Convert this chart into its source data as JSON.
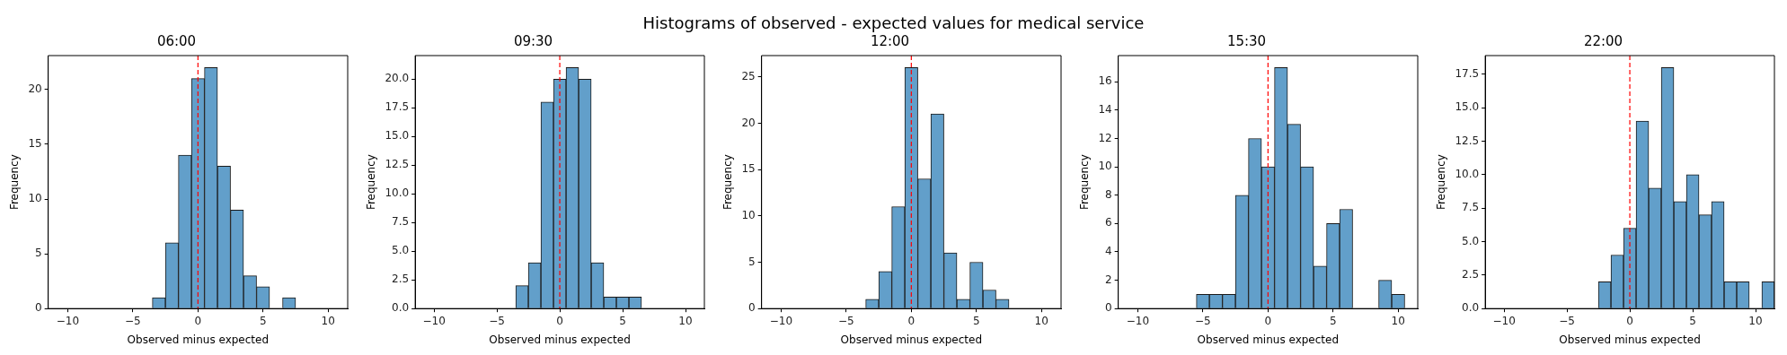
{
  "chart_data": [
    {
      "type": "histogram",
      "title": "06:00",
      "xlabel": "Observed minus expected",
      "ylabel": "Frequency",
      "annotations": [
        "Histograms of observed - expected values for medical service"
      ],
      "color": "#629fca",
      "grid": false,
      "legend": false,
      "bins": [
        -10.5,
        -9.5,
        -8.5,
        -7.5,
        -6.5,
        -5.5,
        -4.5,
        -3.5,
        -2.5,
        -1.5,
        -0.5,
        0.5,
        1.5,
        2.5,
        3.5,
        4.5,
        5.5,
        6.5,
        7.5,
        8.5,
        9.5,
        10.5
      ],
      "values": [
        0,
        0,
        0,
        0,
        0,
        0,
        0,
        1,
        6,
        14,
        21,
        22,
        13,
        9,
        3,
        2,
        0,
        1,
        0,
        0,
        0
      ],
      "xlim": [
        -11.5,
        11.5
      ],
      "xticks": [
        -10,
        -5,
        0,
        5,
        10
      ],
      "ylim": [
        0,
        23.1
      ],
      "yticks": [
        0,
        5,
        10,
        15,
        20
      ],
      "ref_lines": [
        {
          "axis": "x",
          "value": 0,
          "color": "#ff0000",
          "line_style": "dashed"
        }
      ]
    },
    {
      "type": "histogram",
      "title": "09:30",
      "xlabel": "Observed minus expected",
      "ylabel": "Frequency",
      "color": "#629fca",
      "grid": false,
      "legend": false,
      "bins": [
        -10.5,
        -9.5,
        -8.5,
        -7.5,
        -6.5,
        -5.5,
        -4.5,
        -3.5,
        -2.5,
        -1.5,
        -0.5,
        0.5,
        1.5,
        2.5,
        3.5,
        4.5,
        5.5,
        6.5,
        7.5,
        8.5,
        9.5,
        10.5
      ],
      "values": [
        0,
        0,
        0,
        0,
        0,
        0,
        0,
        2,
        4,
        18,
        20,
        21,
        20,
        4,
        1,
        1,
        1,
        0,
        0,
        0,
        0
      ],
      "xlim": [
        -11.5,
        11.5
      ],
      "xticks": [
        -10,
        -5,
        0,
        5,
        10
      ],
      "ylim": [
        0,
        22.05
      ],
      "yticks": [
        {
          "value": 0,
          "label": "0.0"
        },
        2.5,
        {
          "value": 5,
          "label": "5.0"
        },
        7.5,
        {
          "value": 10,
          "label": "10.0"
        },
        12.5,
        {
          "value": 15,
          "label": "15.0"
        },
        17.5,
        {
          "value": 20,
          "label": "20.0"
        }
      ],
      "ref_lines": [
        {
          "axis": "x",
          "value": 0,
          "color": "#ff0000",
          "line_style": "dashed"
        }
      ]
    },
    {
      "type": "histogram",
      "title": "12:00",
      "xlabel": "Observed minus expected",
      "ylabel": "Frequency",
      "color": "#629fca",
      "grid": false,
      "legend": false,
      "bins": [
        -10.5,
        -9.5,
        -8.5,
        -7.5,
        -6.5,
        -5.5,
        -4.5,
        -3.5,
        -2.5,
        -1.5,
        -0.5,
        0.5,
        1.5,
        2.5,
        3.5,
        4.5,
        5.5,
        6.5,
        7.5,
        8.5,
        9.5,
        10.5
      ],
      "values": [
        0,
        0,
        0,
        0,
        0,
        0,
        0,
        1,
        4,
        11,
        26,
        14,
        21,
        6,
        1,
        5,
        2,
        1,
        0,
        0,
        0
      ],
      "xlim": [
        -11.5,
        11.5
      ],
      "xticks": [
        -10,
        -5,
        0,
        5,
        10
      ],
      "ylim": [
        0,
        27.3
      ],
      "yticks": [
        0,
        5,
        10,
        15,
        20,
        25
      ],
      "ref_lines": [
        {
          "axis": "x",
          "value": 0,
          "color": "#ff0000",
          "line_style": "dashed"
        }
      ]
    },
    {
      "type": "histogram",
      "title": "15:30",
      "xlabel": "Observed minus expected",
      "ylabel": "Frequency",
      "color": "#629fca",
      "grid": false,
      "legend": false,
      "bins": [
        -10.5,
        -9.5,
        -8.5,
        -7.5,
        -6.5,
        -5.5,
        -4.5,
        -3.5,
        -2.5,
        -1.5,
        -0.5,
        0.5,
        1.5,
        2.5,
        3.5,
        4.5,
        5.5,
        6.5,
        7.5,
        8.5,
        9.5,
        10.5
      ],
      "values": [
        0,
        0,
        0,
        0,
        0,
        1,
        1,
        1,
        8,
        12,
        10,
        17,
        13,
        10,
        3,
        6,
        7,
        0,
        0,
        2,
        1
      ],
      "xlim": [
        -11.5,
        11.5
      ],
      "xticks": [
        -10,
        -5,
        0,
        5,
        10
      ],
      "ylim": [
        0,
        17.85
      ],
      "yticks": [
        0,
        2,
        4,
        6,
        8,
        10,
        12,
        14,
        16
      ],
      "ref_lines": [
        {
          "axis": "x",
          "value": 0,
          "color": "#ff0000",
          "line_style": "dashed"
        }
      ]
    },
    {
      "type": "histogram",
      "title": "22:00",
      "xlabel": "Observed minus expected",
      "ylabel": "Frequency",
      "color": "#629fca",
      "grid": false,
      "legend": false,
      "bins": [
        -10.5,
        -9.5,
        -8.5,
        -7.5,
        -6.5,
        -5.5,
        -4.5,
        -3.5,
        -2.5,
        -1.5,
        -0.5,
        0.5,
        1.5,
        2.5,
        3.5,
        4.5,
        5.5,
        6.5,
        7.5,
        8.5,
        9.5,
        10.5,
        11.5
      ],
      "values": [
        0,
        0,
        0,
        0,
        0,
        0,
        0,
        0,
        2,
        4,
        6,
        14,
        9,
        18,
        8,
        10,
        7,
        8,
        2,
        2,
        0,
        2
      ],
      "xlim": [
        -11.5,
        11.5
      ],
      "xticks": [
        -10,
        -5,
        0,
        5,
        10
      ],
      "ylim": [
        0,
        18.9
      ],
      "yticks": [
        {
          "value": 0,
          "label": "0.0"
        },
        2.5,
        {
          "value": 5,
          "label": "5.0"
        },
        7.5,
        {
          "value": 10,
          "label": "10.0"
        },
        12.5,
        {
          "value": 15,
          "label": "15.0"
        },
        17.5
      ],
      "ref_lines": [
        {
          "axis": "x",
          "value": 0,
          "color": "#ff0000",
          "line_style": "dashed"
        }
      ]
    }
  ]
}
